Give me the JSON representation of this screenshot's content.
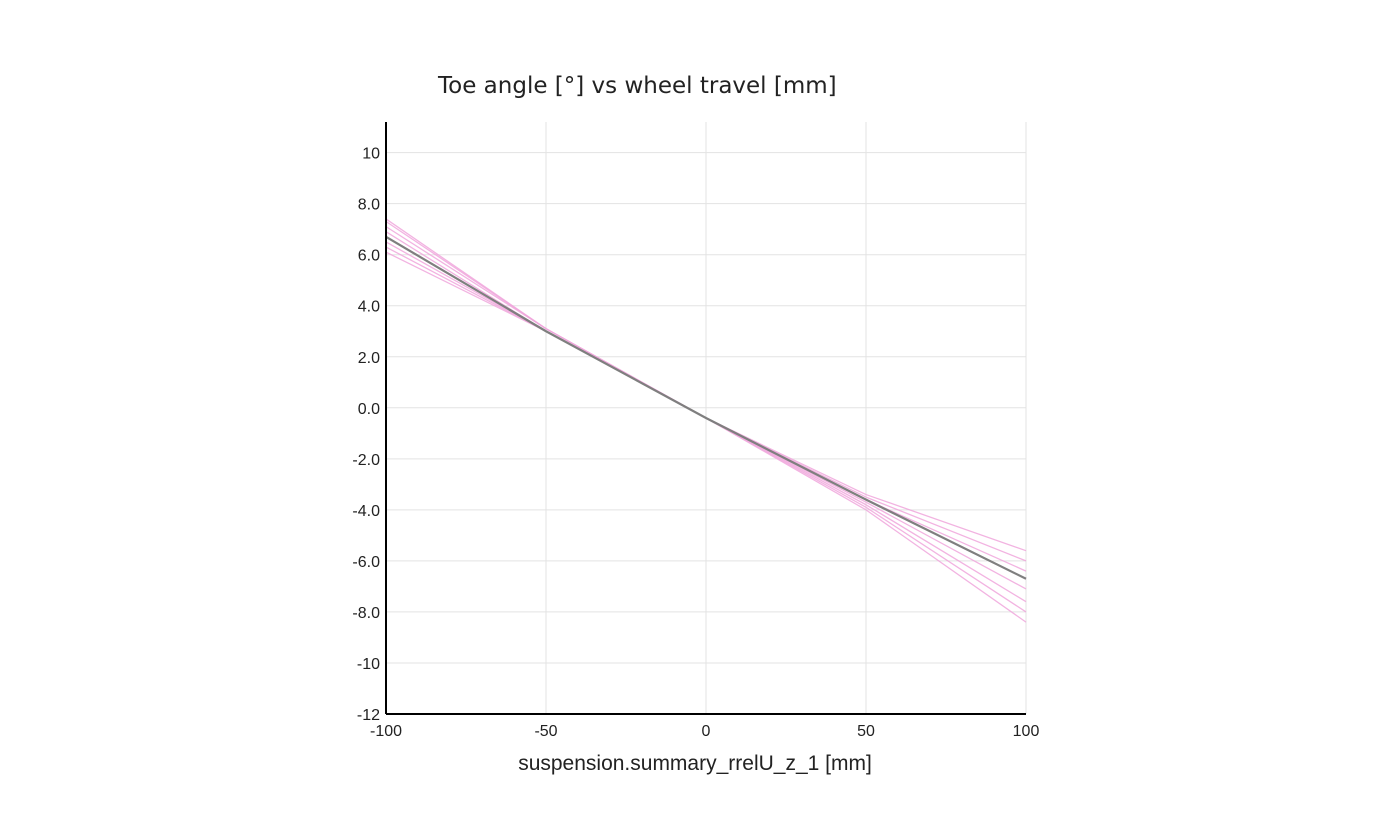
{
  "chart_data": {
    "type": "line",
    "title": "Toe angle [°] vs wheel travel [mm]",
    "xlabel": "suspension.summary_rrelU_z_1 [mm]",
    "ylabel": "",
    "xlim": [
      -100,
      100
    ],
    "ylim": [
      -12,
      11.2
    ],
    "x_ticks": [
      -100,
      -50,
      0,
      50,
      100
    ],
    "x_tick_labels": [
      "-100",
      "-50",
      "0",
      "50",
      "100"
    ],
    "y_ticks": [
      10,
      8,
      6,
      4,
      2,
      0,
      -2,
      -4,
      -6,
      -8,
      -10,
      -12
    ],
    "y_tick_labels": [
      "10",
      "8.0",
      "6.0",
      "4.0",
      "2.0",
      "0.0",
      "-2.0",
      "-4.0",
      "-6.0",
      "-8.0",
      "-10",
      "-12"
    ],
    "grid": true,
    "colors": {
      "variants": "#f0a6dc",
      "nominal": "#7f7f7f",
      "grid": "#e3e3e3",
      "axis": "#000000"
    },
    "series": [
      {
        "role": "variant",
        "x": [
          -100,
          -50,
          0,
          50,
          100
        ],
        "y": [
          6.1,
          3.0,
          -0.4,
          -3.4,
          -5.6
        ]
      },
      {
        "role": "variant",
        "x": [
          -100,
          -50,
          0,
          50,
          100
        ],
        "y": [
          6.3,
          3.0,
          -0.4,
          -3.5,
          -6.0
        ]
      },
      {
        "role": "variant",
        "x": [
          -100,
          -50,
          0,
          50,
          100
        ],
        "y": [
          6.5,
          3.0,
          -0.4,
          -3.6,
          -6.4
        ]
      },
      {
        "role": "variant",
        "x": [
          -100,
          -50,
          0,
          50,
          100
        ],
        "y": [
          6.7,
          3.0,
          -0.4,
          -3.6,
          -6.7
        ]
      },
      {
        "role": "variant",
        "x": [
          -100,
          -50,
          0,
          50,
          100
        ],
        "y": [
          6.9,
          3.0,
          -0.4,
          -3.7,
          -7.1
        ]
      },
      {
        "role": "variant",
        "x": [
          -100,
          -50,
          0,
          50,
          100
        ],
        "y": [
          7.1,
          3.1,
          -0.4,
          -3.8,
          -7.6
        ]
      },
      {
        "role": "variant",
        "x": [
          -100,
          -50,
          0,
          50,
          100
        ],
        "y": [
          7.3,
          3.1,
          -0.4,
          -3.9,
          -8.0
        ]
      },
      {
        "role": "variant",
        "x": [
          -100,
          -50,
          0,
          50,
          100
        ],
        "y": [
          7.4,
          3.1,
          -0.4,
          -4.0,
          -8.4
        ]
      },
      {
        "role": "nominal",
        "x": [
          -100,
          -50,
          0,
          50,
          100
        ],
        "y": [
          6.7,
          3.0,
          -0.4,
          -3.6,
          -6.7
        ]
      }
    ]
  }
}
